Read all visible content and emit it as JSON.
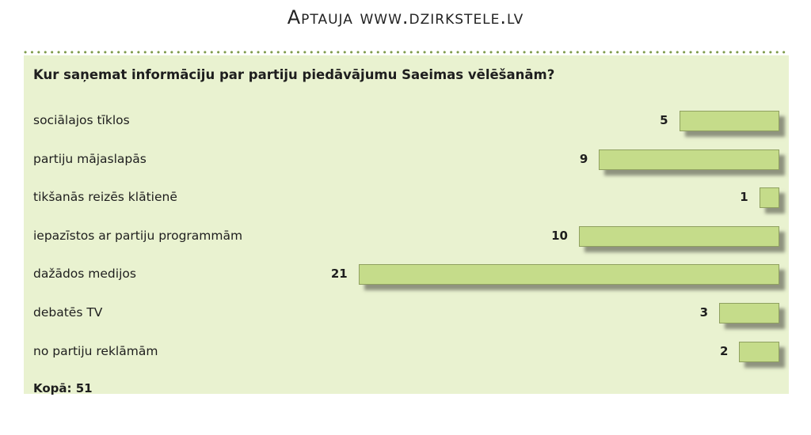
{
  "header": {
    "title": "Aptauja www.dzirkstele.lv"
  },
  "chart_data": {
    "type": "bar",
    "title": "Kur saņemat informāciju par partiju piedāvājumu Saeimas vēlēšanām?",
    "categories": [
      "sociālajos tīklos",
      "partiju mājaslapās",
      "tikšanās reizēs klātienē",
      "iepazīstos ar partiju programmām",
      "dažādos medijos",
      "debatēs TV",
      "no partiju reklāmām"
    ],
    "values": [
      5,
      9,
      1,
      10,
      21,
      3,
      2
    ],
    "total_label": "Kopā: 51",
    "bar_color": "#c5dc8a",
    "orientation": "horizontal",
    "bar_anchor": "right"
  }
}
